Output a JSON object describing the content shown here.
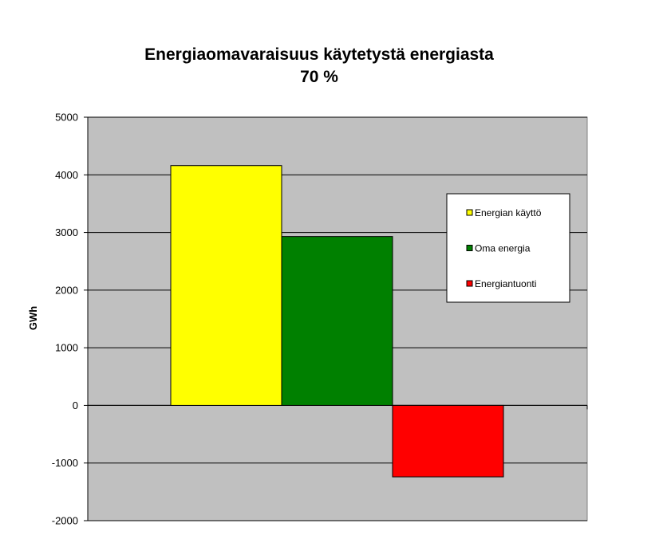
{
  "chart_data": {
    "type": "bar",
    "title_line1": "Energiaomavaraisuus käytetystä energiasta",
    "title_line2": "70 %",
    "ylabel": "GWh",
    "xlabel": "",
    "ylim": [
      -2000,
      5000
    ],
    "yticks": [
      5000,
      4000,
      3000,
      2000,
      1000,
      0,
      -1000,
      -2000
    ],
    "grid": true,
    "legend_position": "right",
    "plot_background": "#c0c0c0",
    "series": [
      {
        "name": "Energian käyttö",
        "values": [
          4160
        ],
        "color": "#ffff00"
      },
      {
        "name": "Oma energia",
        "values": [
          2930
        ],
        "color": "#008000"
      },
      {
        "name": "Energiantuonti",
        "values": [
          -1240
        ],
        "color": "#ff0000"
      }
    ]
  }
}
